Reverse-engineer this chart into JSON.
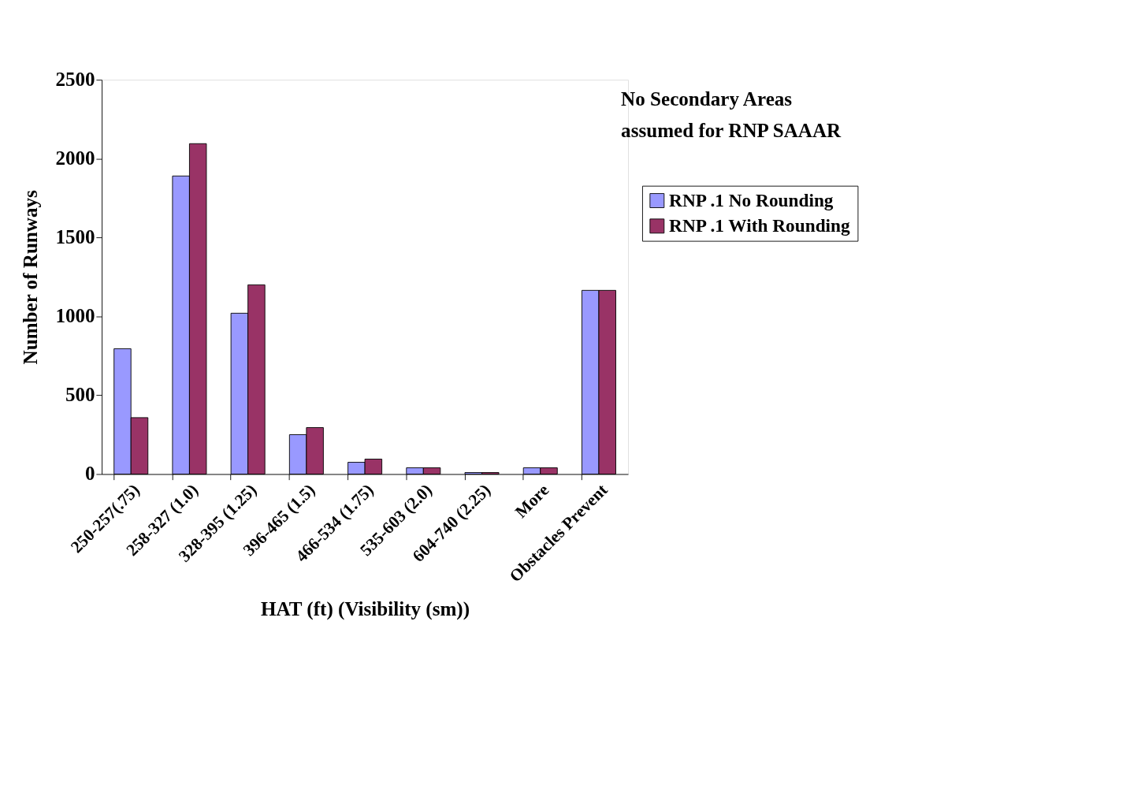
{
  "chart_data": {
    "type": "bar",
    "xlabel": "HAT (ft) (Visibility (sm))",
    "ylabel": "Number of Runways",
    "categories": [
      "250-257(.75)",
      "258-327 (1.0)",
      "328-395 (1.25)",
      "396-465 (1.5)",
      "466-534 (1.75)",
      "535-603 (2.0)",
      "604-740 (2.25)",
      "More",
      "Obstacles Prevent"
    ],
    "series": [
      {
        "name": "RNP .1 No Rounding",
        "color": "#9999ff",
        "values": [
          795,
          1890,
          1020,
          250,
          75,
          40,
          10,
          40,
          1165
        ]
      },
      {
        "name": "RNP .1 With Rounding",
        "color": "#993366",
        "values": [
          358,
          2095,
          1200,
          295,
          95,
          40,
          10,
          40,
          1165
        ]
      }
    ],
    "ylim": [
      0,
      2500
    ],
    "yticks": [
      0,
      500,
      1000,
      1500,
      2000,
      2500
    ],
    "grid": false,
    "legend": "right",
    "annotations": [
      "No Secondary Areas assumed for RNP SAAAR"
    ]
  }
}
